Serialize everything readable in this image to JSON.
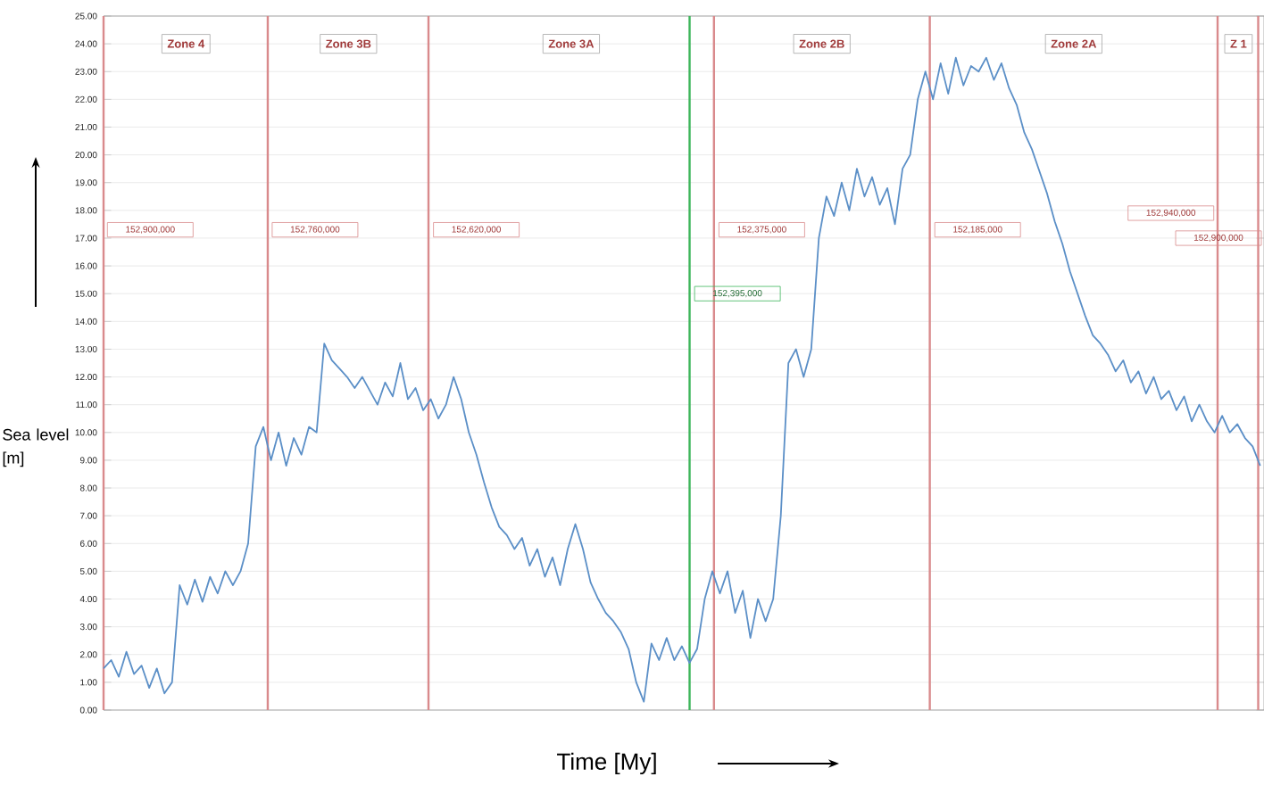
{
  "chart_data": {
    "type": "line",
    "xlabel": "Time [My]",
    "ylabel": "Sea level [m]",
    "ylim": [
      0,
      25
    ],
    "tick_labels": "y",
    "grid": "y",
    "marker": "none",
    "categories": [
      null,
      null,
      null,
      null,
      null,
      null,
      null,
      null,
      null,
      null,
      null,
      null,
      null,
      null,
      null,
      null,
      null,
      null,
      null,
      null,
      null,
      null,
      null,
      null,
      null,
      null,
      null,
      null,
      null,
      null,
      null,
      null,
      null,
      null,
      null,
      null,
      null,
      null,
      null,
      null,
      null,
      null,
      null,
      null,
      null,
      null,
      null,
      null,
      null,
      null,
      null,
      null,
      null,
      null,
      null,
      null,
      null,
      null,
      null,
      null,
      null,
      null,
      null,
      null,
      null,
      null,
      null,
      null,
      null,
      null,
      null,
      null,
      null,
      null,
      null,
      null,
      null,
      null,
      null,
      null,
      null,
      null,
      null,
      null,
      null,
      null,
      null,
      null,
      null,
      null,
      null,
      null,
      null,
      null,
      null,
      null,
      null,
      null,
      null,
      null,
      null,
      null,
      null,
      null,
      null,
      null,
      null,
      null,
      null,
      null,
      null,
      null,
      null,
      null,
      null,
      null,
      null,
      null,
      null,
      null,
      null,
      null,
      null,
      null,
      null,
      null,
      null,
      null,
      null,
      null,
      null,
      null,
      null,
      null,
      null,
      null,
      null,
      null,
      null,
      null,
      null,
      null,
      null,
      null,
      null,
      null,
      null,
      null,
      null,
      null,
      null,
      null,
      null
    ],
    "yticks": [
      {
        "value": 0,
        "label": "0.00"
      },
      {
        "value": 1,
        "label": "1.00"
      },
      {
        "value": 2,
        "label": "2.00"
      },
      {
        "value": 3,
        "label": "3.00"
      },
      {
        "value": 4,
        "label": "4.00"
      },
      {
        "value": 5,
        "label": "5.00"
      },
      {
        "value": 6,
        "label": "6.00"
      },
      {
        "value": 7,
        "label": "7.00"
      },
      {
        "value": 8,
        "label": "8.00"
      },
      {
        "value": 9,
        "label": "9.00"
      },
      {
        "value": 10,
        "label": "10.00"
      },
      {
        "value": 11,
        "label": "11.00"
      },
      {
        "value": 12,
        "label": "12.00"
      },
      {
        "value": 13,
        "label": "13.00"
      },
      {
        "value": 14,
        "label": "14.00"
      },
      {
        "value": 15,
        "label": "15.00"
      },
      {
        "value": 16,
        "label": "16.00"
      },
      {
        "value": 17,
        "label": "17.00"
      },
      {
        "value": 18,
        "label": "18.00"
      },
      {
        "value": 19,
        "label": "19.00"
      },
      {
        "value": 20,
        "label": "20.00"
      },
      {
        "value": 21,
        "label": "21.00"
      },
      {
        "value": 22,
        "label": "22.00"
      },
      {
        "value": 23,
        "label": "23.00"
      },
      {
        "value": 24,
        "label": "24.00"
      },
      {
        "value": 25,
        "label": "25.00"
      }
    ],
    "series": [
      {
        "color": "#5b8fc7",
        "values": [
          1.5,
          1.8,
          1.2,
          2.1,
          1.3,
          1.6,
          0.8,
          1.5,
          0.6,
          1.0,
          4.5,
          3.8,
          4.7,
          3.9,
          4.8,
          4.2,
          5.0,
          4.5,
          5.0,
          6.0,
          9.5,
          10.2,
          9.0,
          10.0,
          8.8,
          9.8,
          9.2,
          10.2,
          10.0,
          13.2,
          12.6,
          12.3,
          12.0,
          11.6,
          12.0,
          11.5,
          11.0,
          11.8,
          11.3,
          12.5,
          11.2,
          11.6,
          10.8,
          11.2,
          10.5,
          11.0,
          12.0,
          11.2,
          10.0,
          9.2,
          8.2,
          7.3,
          6.6,
          6.3,
          5.8,
          6.2,
          5.2,
          5.8,
          4.8,
          5.5,
          4.5,
          5.8,
          6.7,
          5.8,
          4.6,
          4.0,
          3.5,
          3.2,
          2.8,
          2.2,
          1.0,
          0.3,
          2.4,
          1.8,
          2.6,
          1.8,
          2.3,
          1.7,
          2.2,
          4.0,
          5.0,
          4.2,
          5.0,
          3.5,
          4.3,
          2.6,
          4.0,
          3.2,
          4.0,
          7.0,
          12.5,
          13.0,
          12.0,
          13.0,
          17.0,
          18.5,
          17.8,
          19.0,
          18.0,
          19.5,
          18.5,
          19.2,
          18.2,
          18.8,
          17.5,
          19.5,
          20.0,
          22.0,
          23.0,
          22.0,
          23.3,
          22.2,
          23.5,
          22.5,
          23.2,
          23.0,
          23.5,
          22.7,
          23.3,
          22.4,
          21.8,
          20.8,
          20.2,
          19.4,
          18.6,
          17.6,
          16.8,
          15.8,
          15.0,
          14.2,
          13.5,
          13.2,
          12.8,
          12.2,
          12.6,
          11.8,
          12.2,
          11.4,
          12.0,
          11.2,
          11.5,
          10.8,
          11.3,
          10.4,
          11.0,
          10.4,
          10.0,
          10.6,
          10.0,
          10.3,
          9.8,
          9.5,
          8.8
        ]
      }
    ],
    "annotations": [
      "Zone 4",
      "Zone 3B",
      "Zone 3A",
      "Zone 2B",
      "Zone 2A",
      "Z 1",
      "152,900,000",
      "152,760,000",
      "152,620,000",
      "152,375,000",
      "152,185,000",
      "152,940,000",
      "152,900,000",
      "152,395,000"
    ]
  }
}
